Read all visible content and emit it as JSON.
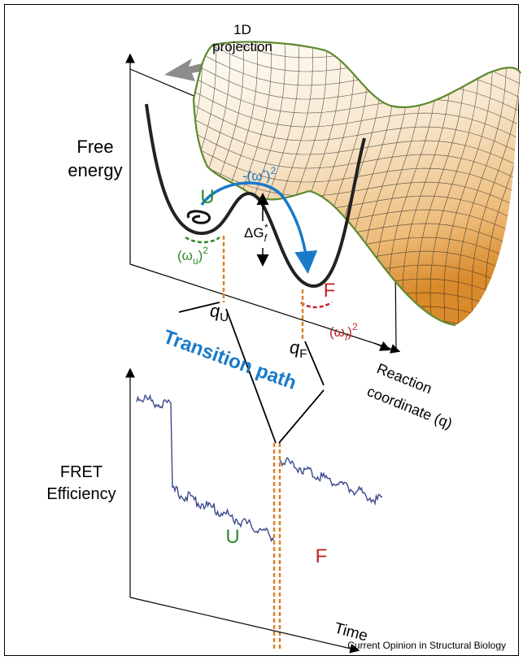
{
  "labels": {
    "projection": [
      "1D",
      "projection"
    ],
    "free_energy": [
      "Free",
      "energy"
    ],
    "u_well": "U",
    "omega_star": {
      "open": "-(ω",
      "star": "*",
      "close": ")",
      "power": "2"
    },
    "delta_g": {
      "base": "ΔG",
      "sub": "f",
      "sup": "*"
    },
    "omega_u": {
      "open": "(ω",
      "sub": "u",
      "close": ")",
      "power": "2"
    },
    "f_well": "F",
    "omega_f": {
      "open": "(ω",
      "sub": "f",
      "close": ")",
      "power": "2"
    },
    "q_u": {
      "base": "q",
      "sub": "U"
    },
    "q_f": {
      "base": "q",
      "sub": "F"
    },
    "transition_path": "Transition path",
    "reaction_coordinate": [
      "Reaction",
      "coordinate (q)"
    ],
    "fret": [
      "FRET",
      "Efficiency"
    ],
    "trace_u": "U",
    "trace_f": "F",
    "time": "Time",
    "source": "Current Opinion in Structural Biology"
  }
}
